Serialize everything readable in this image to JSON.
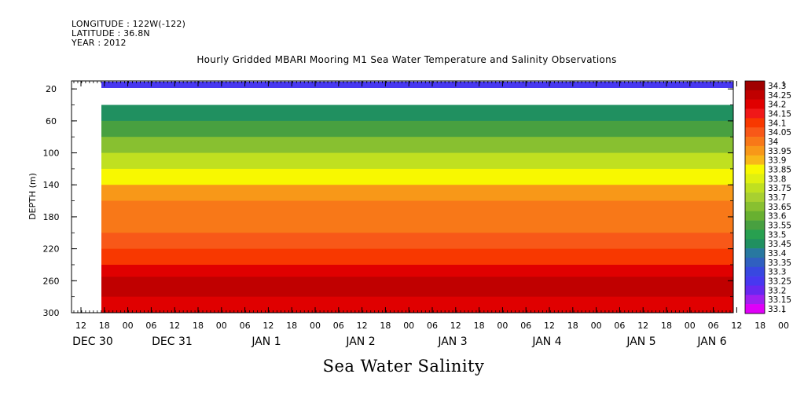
{
  "header": {
    "line1": "LONGITUDE : 122W(-122)",
    "line2": "LATITUDE : 36.8N",
    "line3": "YEAR : 2012",
    "title": "Hourly Gridded MBARI Mooring M1 Sea Water Temperature and Salinity Observations"
  },
  "chart_data": {
    "type": "heatmap",
    "title": "Hourly Gridded MBARI Mooring M1 Sea Water Temperature and Salinity Observations",
    "xlabel": "Sea Water Salinity",
    "ylabel": "DEPTH (m)",
    "x_hour_ticks": [
      "12",
      "18",
      "00",
      "06",
      "12",
      "18",
      "00",
      "06",
      "12",
      "18",
      "00",
      "06",
      "12",
      "18",
      "00",
      "06",
      "12",
      "18",
      "00",
      "06",
      "12",
      "18",
      "00",
      "06",
      "12",
      "18",
      "00",
      "06",
      "12",
      "18",
      "00",
      "06"
    ],
    "x_day_labels": [
      "DEC 30",
      "DEC 31",
      "JAN  1",
      "JAN  2",
      "JAN  3",
      "JAN  4",
      "JAN  5",
      "JAN  6"
    ],
    "y_ticks": [
      20,
      60,
      100,
      140,
      180,
      220,
      260,
      300
    ],
    "ylim": [
      300,
      10
    ],
    "data_start_hour": 18,
    "colorbar_levels": [
      "34.3",
      "34.25",
      "34.2",
      "34.15",
      "34.1",
      "34.05",
      "34",
      "33.95",
      "33.9",
      "33.85",
      "33.8",
      "33.75",
      "33.7",
      "33.65",
      "33.6",
      "33.55",
      "33.5",
      "33.45",
      "33.4",
      "33.35",
      "33.3",
      "33.25",
      "33.2",
      "33.15",
      "33.1"
    ],
    "colorbar_colors": [
      "#a00000",
      "#c00000",
      "#e00000",
      "#f01818",
      "#f83800",
      "#f85818",
      "#f87818",
      "#f89818",
      "#f8b818",
      "#f8f800",
      "#e0f010",
      "#c0e020",
      "#a8d030",
      "#88c030",
      "#68b030",
      "#48a040",
      "#28a050",
      "#209060",
      "#2878a0",
      "#3060c0",
      "#3848e0",
      "#4838f0",
      "#6828f0",
      "#a020f0",
      "#e000f8"
    ],
    "depth_profile": [
      {
        "depth": 10,
        "salinity": 33.28
      },
      {
        "depth": 40,
        "salinity": 33.48
      },
      {
        "depth": 60,
        "salinity": 33.55
      },
      {
        "depth": 80,
        "salinity": 33.68
      },
      {
        "depth": 100,
        "salinity": 33.78
      },
      {
        "depth": 120,
        "salinity": 33.86
      },
      {
        "depth": 140,
        "salinity": 33.95
      },
      {
        "depth": 160,
        "salinity": 34.02
      },
      {
        "depth": 180,
        "salinity": 34.03
      },
      {
        "depth": 200,
        "salinity": 34.06
      },
      {
        "depth": 220,
        "salinity": 34.12
      },
      {
        "depth": 240,
        "salinity": 34.2
      },
      {
        "depth": 255,
        "salinity": 34.27
      },
      {
        "depth": 280,
        "salinity": 34.2
      },
      {
        "depth": 300,
        "salinity": 34.15
      }
    ]
  }
}
